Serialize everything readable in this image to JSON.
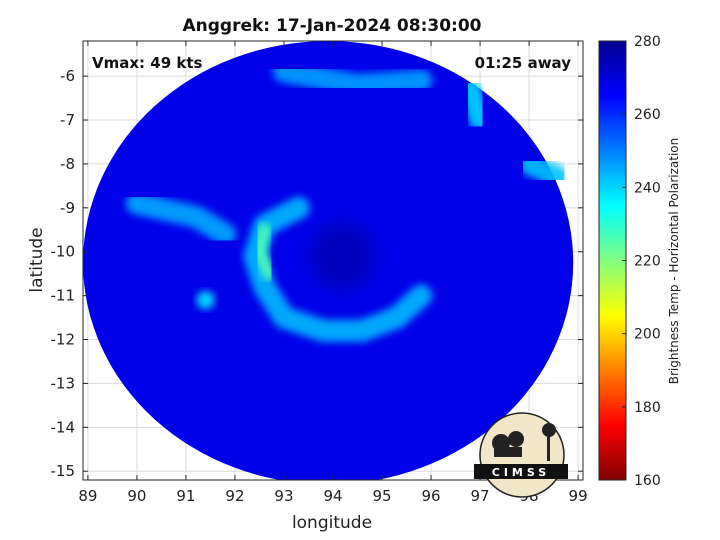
{
  "chart_data": {
    "type": "heatmap",
    "title": "Anggrek: 17-Jan-2024 08:30:00",
    "xlabel": "longitude",
    "ylabel": "latitude",
    "xlim": [
      88.9,
      99.1
    ],
    "ylim": [
      -15.2,
      -5.2
    ],
    "xticks": [
      89,
      90,
      91,
      92,
      93,
      94,
      95,
      96,
      97,
      98,
      99
    ],
    "yticks": [
      -6,
      -7,
      -8,
      -9,
      -10,
      -11,
      -12,
      -13,
      -14,
      -15
    ],
    "grid": true,
    "annotations": {
      "vmax": "Vmax: 49 kts",
      "time_offset": "01:25 away"
    },
    "colorbar": {
      "label": "Brightness Temp - Horizontal Polarization",
      "min": 160,
      "max": 280,
      "ticks": [
        280,
        260,
        240,
        220,
        200,
        180,
        160
      ],
      "colormap": "jet"
    },
    "swath": {
      "center_lon": 93.9,
      "center_lat": -10.25,
      "radius_lon": 5.0,
      "radius_lat": 5.05,
      "background_temp": 268
    },
    "features": [
      {
        "name": "eye",
        "lon": 94.2,
        "lat": -10.1,
        "temp": 274
      },
      {
        "name": "rainband-west-arc",
        "points": [
          [
            93.3,
            -9.0
          ],
          [
            92.6,
            -9.4
          ],
          [
            92.4,
            -10.1
          ],
          [
            92.6,
            -10.8
          ],
          [
            93.0,
            -11.5
          ],
          [
            93.8,
            -11.8
          ],
          [
            94.6,
            -11.8
          ],
          [
            95.3,
            -11.5
          ],
          [
            95.8,
            -11.0
          ]
        ],
        "temp": 243
      },
      {
        "name": "rainband-core-yellow",
        "points": [
          [
            92.6,
            -9.5
          ],
          [
            92.5,
            -10.0
          ],
          [
            92.7,
            -10.5
          ]
        ],
        "temp": 226
      },
      {
        "name": "outer-band-west",
        "points": [
          [
            90.0,
            -8.9
          ],
          [
            91.2,
            -9.2
          ],
          [
            91.8,
            -9.6
          ]
        ],
        "temp": 245
      },
      {
        "name": "cell-south-west",
        "lon": 91.4,
        "lat": -11.1,
        "temp": 238
      },
      {
        "name": "north-convection",
        "points": [
          [
            93.0,
            -5.9
          ],
          [
            94.5,
            -6.2
          ],
          [
            95.8,
            -6.1
          ]
        ],
        "temp": 246
      },
      {
        "name": "northeast-convection",
        "points": [
          [
            96.8,
            -6.3
          ],
          [
            97.0,
            -7.0
          ]
        ],
        "temp": 240
      },
      {
        "name": "east-band",
        "points": [
          [
            98.0,
            -8.0
          ],
          [
            98.6,
            -8.3
          ]
        ],
        "temp": 242
      }
    ]
  },
  "logo": {
    "text": "CIMSS"
  }
}
